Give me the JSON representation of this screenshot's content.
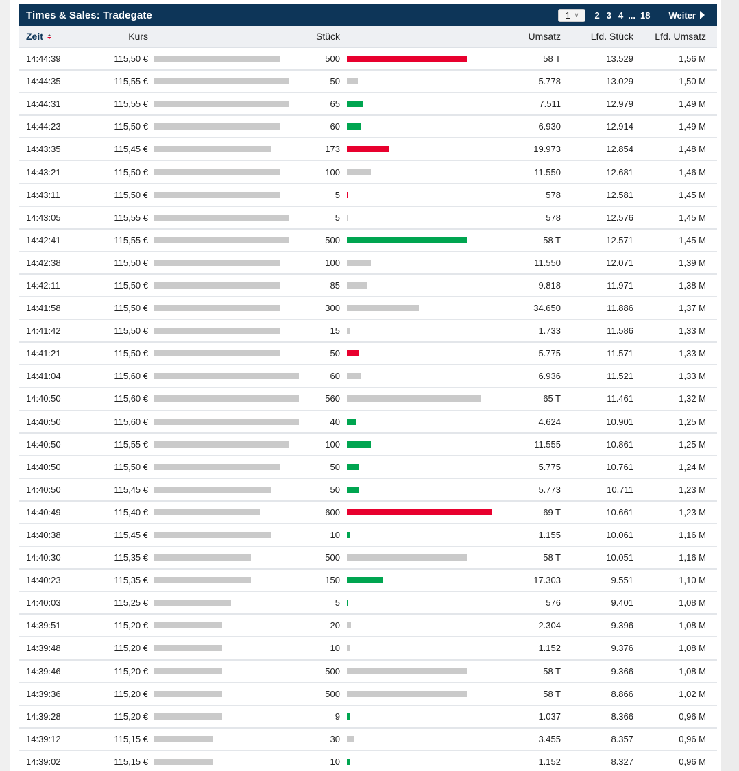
{
  "widget": {
    "title": "Times & Sales: Tradegate",
    "pager": {
      "selected_page": "1",
      "pages": [
        "2",
        "3",
        "4"
      ],
      "ellipsis": "...",
      "last_page": "18",
      "next_label": "Weiter"
    }
  },
  "columns": {
    "time": "Zeit",
    "price": "Kurs",
    "volume": "Stück",
    "turnover": "Umsatz",
    "cum_volume": "Lfd. Stück",
    "cum_turnover": "Lfd. Umsatz"
  },
  "colors": {
    "header_bg": "#0d3558",
    "bar_neutral": "#cacaca",
    "bar_sell": "#e8002e",
    "bar_buy": "#00a550"
  },
  "rows": [
    {
      "time": "14:44:39",
      "price": "115,50 €",
      "price_bar": 185,
      "volume": "500",
      "vol_bar": 175,
      "vol_color": "red",
      "turnover": "58 T",
      "cum_volume": "13.529",
      "cum_turnover": "1,56 M"
    },
    {
      "time": "14:44:35",
      "price": "115,55 €",
      "price_bar": 198,
      "volume": "50",
      "vol_bar": 16,
      "vol_color": "grey",
      "turnover": "5.778",
      "cum_volume": "13.029",
      "cum_turnover": "1,50 M"
    },
    {
      "time": "14:44:31",
      "price": "115,55 €",
      "price_bar": 198,
      "volume": "65",
      "vol_bar": 23,
      "vol_color": "green",
      "turnover": "7.511",
      "cum_volume": "12.979",
      "cum_turnover": "1,49 M"
    },
    {
      "time": "14:44:23",
      "price": "115,50 €",
      "price_bar": 185,
      "volume": "60",
      "vol_bar": 21,
      "vol_color": "green",
      "turnover": "6.930",
      "cum_volume": "12.914",
      "cum_turnover": "1,49 M"
    },
    {
      "time": "14:43:35",
      "price": "115,45 €",
      "price_bar": 171,
      "volume": "173",
      "vol_bar": 62,
      "vol_color": "red",
      "turnover": "19.973",
      "cum_volume": "12.854",
      "cum_turnover": "1,48 M"
    },
    {
      "time": "14:43:21",
      "price": "115,50 €",
      "price_bar": 185,
      "volume": "100",
      "vol_bar": 35,
      "vol_color": "grey",
      "turnover": "11.550",
      "cum_volume": "12.681",
      "cum_turnover": "1,46 M"
    },
    {
      "time": "14:43:11",
      "price": "115,50 €",
      "price_bar": 185,
      "volume": "5",
      "vol_bar": 2,
      "vol_color": "red",
      "turnover": "578",
      "cum_volume": "12.581",
      "cum_turnover": "1,45 M"
    },
    {
      "time": "14:43:05",
      "price": "115,55 €",
      "price_bar": 198,
      "volume": "5",
      "vol_bar": 2,
      "vol_color": "grey",
      "turnover": "578",
      "cum_volume": "12.576",
      "cum_turnover": "1,45 M"
    },
    {
      "time": "14:42:41",
      "price": "115,55 €",
      "price_bar": 198,
      "volume": "500",
      "vol_bar": 175,
      "vol_color": "green",
      "turnover": "58 T",
      "cum_volume": "12.571",
      "cum_turnover": "1,45 M"
    },
    {
      "time": "14:42:38",
      "price": "115,50 €",
      "price_bar": 185,
      "volume": "100",
      "vol_bar": 35,
      "vol_color": "grey",
      "turnover": "11.550",
      "cum_volume": "12.071",
      "cum_turnover": "1,39 M"
    },
    {
      "time": "14:42:11",
      "price": "115,50 €",
      "price_bar": 185,
      "volume": "85",
      "vol_bar": 30,
      "vol_color": "grey",
      "turnover": "9.818",
      "cum_volume": "11.971",
      "cum_turnover": "1,38 M"
    },
    {
      "time": "14:41:58",
      "price": "115,50 €",
      "price_bar": 185,
      "volume": "300",
      "vol_bar": 105,
      "vol_color": "grey",
      "turnover": "34.650",
      "cum_volume": "11.886",
      "cum_turnover": "1,37 M"
    },
    {
      "time": "14:41:42",
      "price": "115,50 €",
      "price_bar": 185,
      "volume": "15",
      "vol_bar": 4,
      "vol_color": "grey",
      "turnover": "1.733",
      "cum_volume": "11.586",
      "cum_turnover": "1,33 M"
    },
    {
      "time": "14:41:21",
      "price": "115,50 €",
      "price_bar": 185,
      "volume": "50",
      "vol_bar": 17,
      "vol_color": "red",
      "turnover": "5.775",
      "cum_volume": "11.571",
      "cum_turnover": "1,33 M"
    },
    {
      "time": "14:41:04",
      "price": "115,60 €",
      "price_bar": 212,
      "volume": "60",
      "vol_bar": 21,
      "vol_color": "grey",
      "turnover": "6.936",
      "cum_volume": "11.521",
      "cum_turnover": "1,33 M"
    },
    {
      "time": "14:40:50",
      "price": "115,60 €",
      "price_bar": 212,
      "volume": "560",
      "vol_bar": 196,
      "vol_color": "grey",
      "turnover": "65 T",
      "cum_volume": "11.461",
      "cum_turnover": "1,32 M"
    },
    {
      "time": "14:40:50",
      "price": "115,60 €",
      "price_bar": 212,
      "volume": "40",
      "vol_bar": 14,
      "vol_color": "green",
      "turnover": "4.624",
      "cum_volume": "10.901",
      "cum_turnover": "1,25 M"
    },
    {
      "time": "14:40:50",
      "price": "115,55 €",
      "price_bar": 198,
      "volume": "100",
      "vol_bar": 35,
      "vol_color": "green",
      "turnover": "11.555",
      "cum_volume": "10.861",
      "cum_turnover": "1,25 M"
    },
    {
      "time": "14:40:50",
      "price": "115,50 €",
      "price_bar": 185,
      "volume": "50",
      "vol_bar": 17,
      "vol_color": "green",
      "turnover": "5.775",
      "cum_volume": "10.761",
      "cum_turnover": "1,24 M"
    },
    {
      "time": "14:40:50",
      "price": "115,45 €",
      "price_bar": 171,
      "volume": "50",
      "vol_bar": 17,
      "vol_color": "green",
      "turnover": "5.773",
      "cum_volume": "10.711",
      "cum_turnover": "1,23 M"
    },
    {
      "time": "14:40:49",
      "price": "115,40 €",
      "price_bar": 155,
      "volume": "600",
      "vol_bar": 212,
      "vol_color": "red",
      "turnover": "69 T",
      "cum_volume": "10.661",
      "cum_turnover": "1,23 M"
    },
    {
      "time": "14:40:38",
      "price": "115,45 €",
      "price_bar": 171,
      "volume": "10",
      "vol_bar": 4,
      "vol_color": "green",
      "turnover": "1.155",
      "cum_volume": "10.061",
      "cum_turnover": "1,16 M"
    },
    {
      "time": "14:40:30",
      "price": "115,35 €",
      "price_bar": 142,
      "volume": "500",
      "vol_bar": 175,
      "vol_color": "grey",
      "turnover": "58 T",
      "cum_volume": "10.051",
      "cum_turnover": "1,16 M"
    },
    {
      "time": "14:40:23",
      "price": "115,35 €",
      "price_bar": 142,
      "volume": "150",
      "vol_bar": 52,
      "vol_color": "green",
      "turnover": "17.303",
      "cum_volume": "9.551",
      "cum_turnover": "1,10 M"
    },
    {
      "time": "14:40:03",
      "price": "115,25 €",
      "price_bar": 113,
      "volume": "5",
      "vol_bar": 2,
      "vol_color": "green",
      "turnover": "576",
      "cum_volume": "9.401",
      "cum_turnover": "1,08 M"
    },
    {
      "time": "14:39:51",
      "price": "115,20 €",
      "price_bar": 100,
      "volume": "20",
      "vol_bar": 6,
      "vol_color": "grey",
      "turnover": "2.304",
      "cum_volume": "9.396",
      "cum_turnover": "1,08 M"
    },
    {
      "time": "14:39:48",
      "price": "115,20 €",
      "price_bar": 100,
      "volume": "10",
      "vol_bar": 4,
      "vol_color": "grey",
      "turnover": "1.152",
      "cum_volume": "9.376",
      "cum_turnover": "1,08 M"
    },
    {
      "time": "14:39:46",
      "price": "115,20 €",
      "price_bar": 100,
      "volume": "500",
      "vol_bar": 175,
      "vol_color": "grey",
      "turnover": "58 T",
      "cum_volume": "9.366",
      "cum_turnover": "1,08 M"
    },
    {
      "time": "14:39:36",
      "price": "115,20 €",
      "price_bar": 100,
      "volume": "500",
      "vol_bar": 175,
      "vol_color": "grey",
      "turnover": "58 T",
      "cum_volume": "8.866",
      "cum_turnover": "1,02 M"
    },
    {
      "time": "14:39:28",
      "price": "115,20 €",
      "price_bar": 100,
      "volume": "9",
      "vol_bar": 4,
      "vol_color": "green",
      "turnover": "1.037",
      "cum_volume": "8.366",
      "cum_turnover": "0,96 M"
    },
    {
      "time": "14:39:12",
      "price": "115,15 €",
      "price_bar": 86,
      "volume": "30",
      "vol_bar": 11,
      "vol_color": "grey",
      "turnover": "3.455",
      "cum_volume": "8.357",
      "cum_turnover": "0,96 M"
    },
    {
      "time": "14:39:02",
      "price": "115,15 €",
      "price_bar": 86,
      "volume": "10",
      "vol_bar": 4,
      "vol_color": "green",
      "turnover": "1.152",
      "cum_volume": "8.327",
      "cum_turnover": "0,96 M"
    }
  ]
}
